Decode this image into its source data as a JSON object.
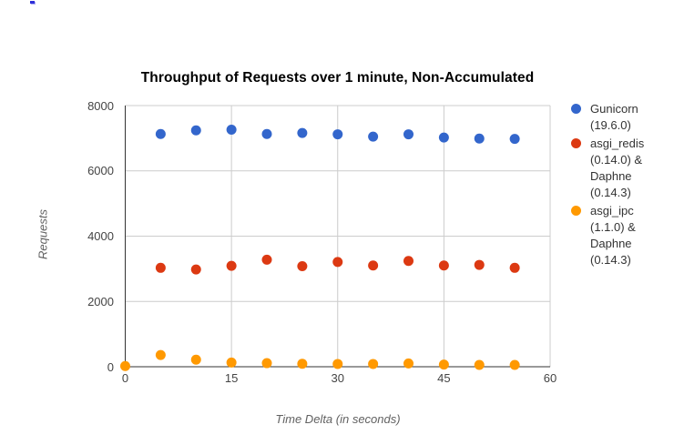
{
  "ui": {
    "background": "#ffffff",
    "grid_color": "#cccccc",
    "axis_color": "#333333",
    "tick_label_color": "#444444",
    "cursor_artifact_color": "#2f2fd8"
  },
  "chart_data": {
    "type": "scatter",
    "title": "Throughput of Requests over 1 minute, Non-Accumulated",
    "xlabel": "Time Delta (in seconds)",
    "ylabel": "Requests",
    "xlim": [
      0,
      60
    ],
    "ylim": [
      0,
      8000
    ],
    "x_ticks": [
      0,
      15,
      30,
      45,
      60
    ],
    "y_ticks": [
      0,
      2000,
      4000,
      6000,
      8000
    ],
    "grid": true,
    "legend_position": "right",
    "point_radius": 5.5,
    "series": [
      {
        "name": "Gunicorn (19.6.0)",
        "legend_lines": [
          "Gunicorn",
          "(19.6.0)"
        ],
        "color": "#3366CC",
        "x": [
          5,
          10,
          15,
          20,
          25,
          30,
          35,
          40,
          45,
          50,
          55
        ],
        "y": [
          7130,
          7240,
          7260,
          7130,
          7160,
          7120,
          7050,
          7120,
          7020,
          6990,
          6980
        ]
      },
      {
        "name": "asgi_redis (0.14.0) & Daphne (0.14.3)",
        "legend_lines": [
          "asgi_redis",
          "(0.14.0) &",
          "Daphne",
          "(0.14.3)"
        ],
        "color": "#DC3912",
        "x": [
          5,
          10,
          15,
          20,
          25,
          30,
          35,
          40,
          45,
          50,
          55
        ],
        "y": [
          3030,
          2980,
          3090,
          3280,
          3080,
          3210,
          3100,
          3240,
          3100,
          3120,
          3030
        ]
      },
      {
        "name": "asgi_ipc (1.1.0) & Daphne (0.14.3)",
        "legend_lines": [
          "asgi_ipc",
          "(1.1.0) &",
          "Daphne",
          "(0.14.3)"
        ],
        "color": "#FF9900",
        "x": [
          0,
          5,
          10,
          15,
          20,
          25,
          30,
          35,
          40,
          45,
          50,
          55
        ],
        "y": [
          20,
          360,
          215,
          130,
          110,
          90,
          85,
          85,
          100,
          65,
          55,
          55
        ]
      }
    ]
  }
}
